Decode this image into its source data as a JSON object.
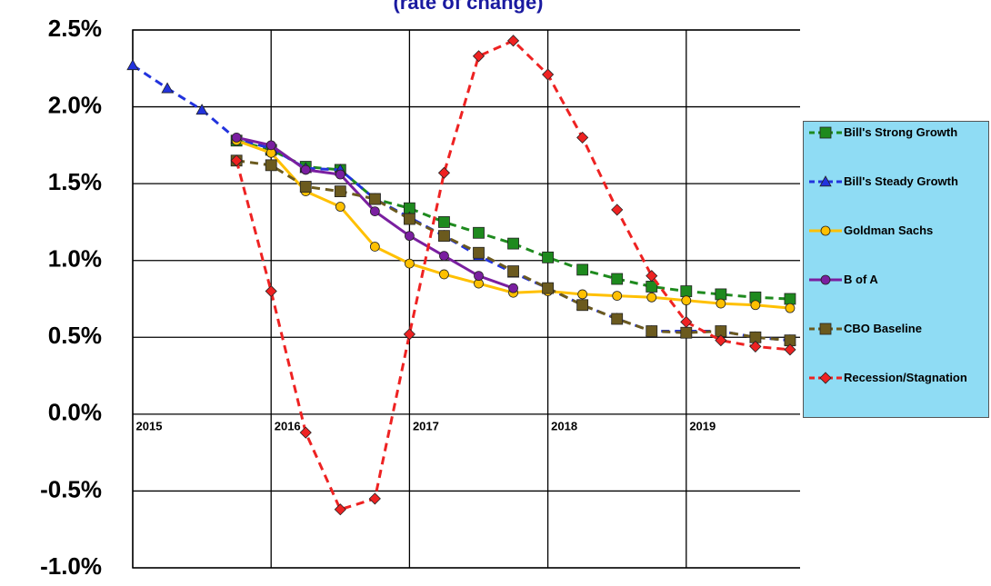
{
  "chart_data": {
    "type": "line",
    "subtitle": "(rate of change)",
    "x": [
      2015,
      2015.25,
      2015.5,
      2015.75,
      2016,
      2016.25,
      2016.5,
      2016.75,
      2017,
      2017.25,
      2017.5,
      2017.75,
      2018,
      2018.25,
      2018.5,
      2018.75,
      2019,
      2019.25,
      2019.5,
      2019.75
    ],
    "xlim": [
      2015,
      2020
    ],
    "xticks": [
      2015,
      2016,
      2017,
      2018,
      2019
    ],
    "ylim": [
      -1.0,
      2.5
    ],
    "yticks": [
      {
        "value": -1.0,
        "label": "-1.0%"
      },
      {
        "value": -0.5,
        "label": "-0.5%"
      },
      {
        "value": 0,
        "label": "0.0%"
      },
      {
        "value": 0.5,
        "label": "0.5%"
      },
      {
        "value": 1.0,
        "label": "1.0%"
      },
      {
        "value": 1.5,
        "label": "1.5%"
      },
      {
        "value": 2.0,
        "label": "2.0%"
      },
      {
        "value": 2.5,
        "label": "2.5%"
      }
    ],
    "grid": true,
    "legend": "right",
    "series": [
      {
        "name": "Bill's Strong Growth",
        "color": "#1e8a1e",
        "dash": true,
        "marker": "square",
        "values": [
          null,
          null,
          null,
          1.78,
          1.72,
          1.61,
          1.59,
          1.4,
          1.34,
          1.25,
          1.18,
          1.11,
          1.02,
          0.94,
          0.88,
          0.83,
          0.8,
          0.78,
          0.76,
          0.75
        ]
      },
      {
        "name": "Bill's Steady Growth",
        "color": "#2233dd",
        "dash": true,
        "marker": "triangle",
        "values": [
          2.27,
          2.12,
          1.98,
          1.79,
          1.73,
          1.6,
          1.59,
          1.4,
          1.28,
          1.16,
          1.03,
          0.92,
          0.82,
          0.71,
          0.62,
          0.54,
          0.54,
          0.54,
          0.5,
          0.48
        ]
      },
      {
        "name": "Goldman Sachs",
        "color": "#ffc000",
        "dash": false,
        "marker": "circle",
        "values": [
          null,
          null,
          null,
          1.78,
          1.7,
          1.45,
          1.35,
          1.09,
          0.98,
          0.91,
          0.85,
          0.79,
          0.8,
          0.78,
          0.77,
          0.76,
          0.74,
          0.72,
          0.71,
          0.69
        ]
      },
      {
        "name": "B of A",
        "color": "#7a1fa0",
        "dash": false,
        "marker": "circle",
        "values": [
          null,
          null,
          null,
          1.8,
          1.75,
          1.59,
          1.56,
          1.32,
          1.16,
          1.03,
          0.9,
          0.82,
          null,
          null,
          null,
          null,
          null,
          null,
          null,
          null
        ]
      },
      {
        "name": "CBO Baseline",
        "color": "#6b5a1e",
        "dash": true,
        "marker": "square",
        "values": [
          null,
          null,
          null,
          1.65,
          1.62,
          1.48,
          1.45,
          1.4,
          1.27,
          1.16,
          1.05,
          0.93,
          0.82,
          0.71,
          0.62,
          0.54,
          0.53,
          0.54,
          0.5,
          0.48
        ]
      },
      {
        "name": "Recession/Stagnation",
        "color": "#ee2222",
        "dash": true,
        "marker": "diamond",
        "values": [
          null,
          null,
          null,
          1.65,
          0.8,
          -0.12,
          -0.62,
          -0.55,
          0.52,
          1.57,
          2.33,
          2.43,
          2.21,
          1.8,
          1.33,
          0.9,
          0.6,
          0.48,
          0.44,
          0.42
        ]
      }
    ]
  }
}
